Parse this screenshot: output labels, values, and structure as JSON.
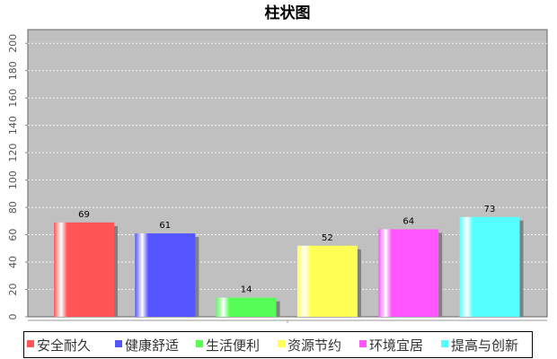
{
  "chart_data": {
    "type": "bar",
    "title": "柱状图",
    "xlabel": "",
    "ylabel": "",
    "categories": [
      "安全耐久",
      "健康舒适",
      "生活便利",
      "资源节约",
      "环境宜居",
      "提高与创新"
    ],
    "values": [
      69,
      61,
      14,
      52,
      64,
      73
    ],
    "colors": [
      "#ff5555",
      "#5555ff",
      "#55ff55",
      "#ffff55",
      "#ff55ff",
      "#55ffff"
    ],
    "ylim": [
      0,
      210
    ],
    "yticks": [
      0,
      20,
      40,
      60,
      80,
      100,
      120,
      140,
      160,
      180,
      200
    ],
    "grid": true,
    "legend": "bottom",
    "plot_background": "#c0c0c0"
  }
}
